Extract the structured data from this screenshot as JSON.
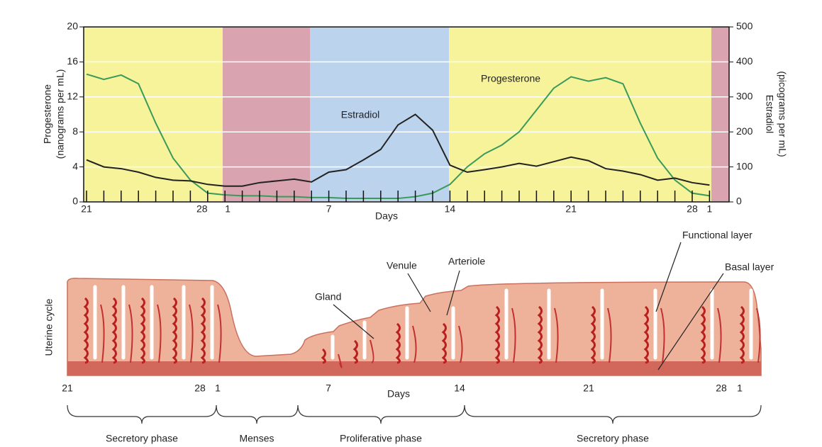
{
  "chart_data": {
    "type": "line",
    "ylabel": [
      "Progesterone",
      "(nanograms per mL)"
    ],
    "y2label": [
      "Estradiol",
      "(picograms per mL)"
    ],
    "xlabel": "Days",
    "categories": [
      "21",
      null,
      null,
      null,
      null,
      null,
      null,
      "28",
      "1",
      null,
      null,
      null,
      null,
      null,
      "7",
      null,
      null,
      null,
      null,
      null,
      null,
      "14",
      null,
      null,
      null,
      null,
      null,
      null,
      "21",
      null,
      null,
      null,
      null,
      null,
      null,
      "28",
      "1"
    ],
    "series": [
      {
        "name": "Progesterone",
        "color": "#3a9a5a",
        "axis": "y",
        "values": [
          14.6,
          14,
          14.5,
          13.5,
          9,
          5,
          2.5,
          1,
          0.8,
          0.7,
          0.7,
          0.6,
          0.6,
          0.5,
          0.5,
          0.4,
          0.4,
          0.4,
          0.4,
          0.6,
          1,
          2,
          4,
          5.5,
          6.5,
          8,
          10.5,
          13,
          14.3,
          13.8,
          14.2,
          13.5,
          9,
          5,
          2.5,
          1,
          0.7
        ]
      },
      {
        "name": "Estradiol",
        "color": "#222222",
        "axis": "y2",
        "values": [
          120,
          100,
          95,
          85,
          70,
          62,
          60,
          50,
          45,
          45,
          55,
          60,
          65,
          57,
          85,
          92,
          120,
          150,
          220,
          250,
          205,
          105,
          85,
          92,
          100,
          110,
          102,
          115,
          128,
          118,
          95,
          88,
          78,
          62,
          68,
          55,
          48
        ]
      }
    ],
    "ylim": [
      0,
      20
    ],
    "yticks": [
      0,
      4,
      8,
      12,
      16,
      20
    ],
    "y2lim": [
      0,
      500
    ],
    "y2ticks": [
      0,
      100,
      200,
      300,
      400,
      500
    ],
    "grid": true
  },
  "diagram": {
    "ylabel": "Uterine cycle",
    "days": [
      "21",
      "28",
      "1",
      "7",
      "14",
      "21",
      "28",
      "1"
    ],
    "xlabel": "Days",
    "labels": [
      "Gland",
      "Venule",
      "Arteriole",
      "Functional layer",
      "Basal layer"
    ],
    "phases": [
      "Secretory phase",
      "Menses",
      "Proliferative phase",
      "Secretory phase"
    ]
  }
}
